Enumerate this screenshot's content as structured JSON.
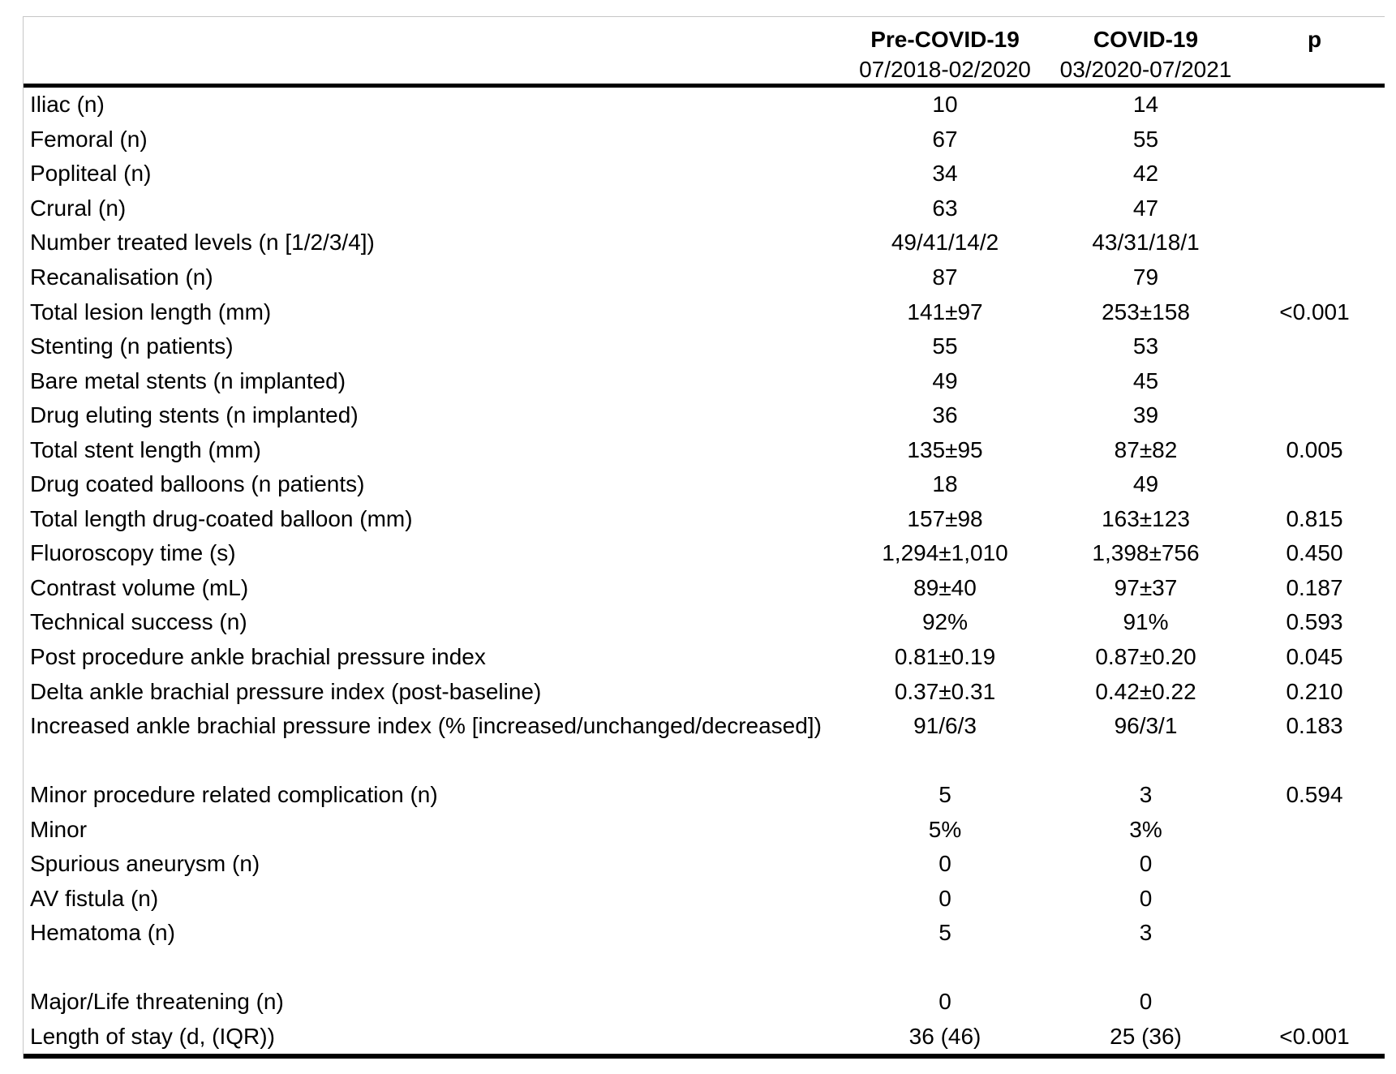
{
  "table": {
    "header": {
      "pre": {
        "title": "Pre-COVID-19",
        "subtitle": "07/2018-02/2020"
      },
      "covid": {
        "title": "COVID-19",
        "subtitle": "03/2020-07/2021"
      },
      "p": {
        "title": "p"
      }
    },
    "rows": [
      {
        "label": "Iliac (n)",
        "pre": "10",
        "covid": "14",
        "p": ""
      },
      {
        "label": "Femoral (n)",
        "pre": "67",
        "covid": "55",
        "p": ""
      },
      {
        "label": "Popliteal (n)",
        "pre": "34",
        "covid": "42",
        "p": ""
      },
      {
        "label": "Crural (n)",
        "pre": "63",
        "covid": "47",
        "p": ""
      },
      {
        "label": "Number treated levels (n [1/2/3/4])",
        "pre": "49/41/14/2",
        "covid": "43/31/18/1",
        "p": ""
      },
      {
        "label": "Recanalisation (n)",
        "pre": "87",
        "covid": "79",
        "p": ""
      },
      {
        "label": "Total lesion length (mm)",
        "pre": "141±97",
        "covid": "253±158",
        "p": "<0.001"
      },
      {
        "label": "Stenting (n patients)",
        "pre": "55",
        "covid": "53",
        "p": ""
      },
      {
        "label": "Bare metal stents (n implanted)",
        "pre": "49",
        "covid": "45",
        "p": ""
      },
      {
        "label": "Drug eluting stents (n implanted)",
        "pre": "36",
        "covid": "39",
        "p": ""
      },
      {
        "label": "Total stent length (mm)",
        "pre": "135±95",
        "covid": "87±82",
        "p": "0.005"
      },
      {
        "label": "Drug coated balloons (n patients)",
        "pre": "18",
        "covid": "49",
        "p": ""
      },
      {
        "label": "Total length drug-coated balloon (mm)",
        "pre": "157±98",
        "covid": "163±123",
        "p": "0.815"
      },
      {
        "label": "Fluoroscopy time (s)",
        "pre": "1,294±1,010",
        "covid": "1,398±756",
        "p": "0.450"
      },
      {
        "label": "Contrast volume (mL)",
        "pre": "89±40",
        "covid": "97±37",
        "p": "0.187"
      },
      {
        "label": "Technical success (n)",
        "pre": "92%",
        "covid": "91%",
        "p": "0.593"
      },
      {
        "label": "Post procedure ankle brachial pressure index",
        "pre": "0.81±0.19",
        "covid": "0.87±0.20",
        "p": "0.045"
      },
      {
        "label": "Delta ankle brachial pressure index (post-baseline)",
        "pre": "0.37±0.31",
        "covid": "0.42±0.22",
        "p": "0.210"
      },
      {
        "label": "Increased ankle brachial pressure index (% [increased/unchanged/decreased])",
        "pre": "91/6/3",
        "covid": "96/3/1",
        "p": "0.183"
      },
      {
        "label": "",
        "pre": "",
        "covid": "",
        "p": "",
        "spacer": true
      },
      {
        "label": "Minor procedure related complication (n)",
        "pre": "5",
        "covid": "3",
        "p": "0.594"
      },
      {
        "label": "Minor",
        "pre": "5%",
        "covid": "3%",
        "p": ""
      },
      {
        "label": "Spurious aneurysm (n)",
        "pre": "0",
        "covid": "0",
        "p": ""
      },
      {
        "label": "AV fistula (n)",
        "pre": "0",
        "covid": "0",
        "p": ""
      },
      {
        "label": "Hematoma (n)",
        "pre": "5",
        "covid": "3",
        "p": ""
      },
      {
        "label": "",
        "pre": "",
        "covid": "",
        "p": "",
        "spacer": true
      },
      {
        "label": "Major/Life threatening (n)",
        "pre": "0",
        "covid": "0",
        "p": ""
      },
      {
        "label": "Length of stay (d, (IQR))",
        "pre": "36 (46)",
        "covid": "25 (36)",
        "p": "<0.001"
      }
    ]
  }
}
